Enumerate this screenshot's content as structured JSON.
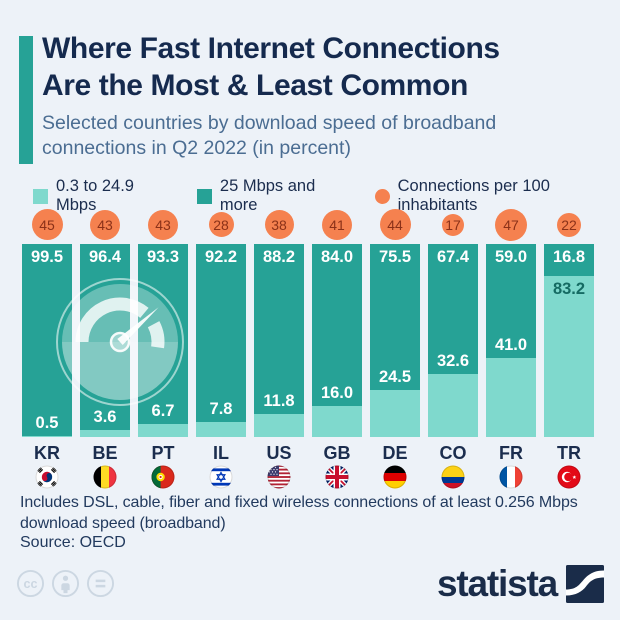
{
  "header": {
    "title": "Where Fast Internet Connections Are the Most & Least Common",
    "subtitle": "Selected countries by download speed of broadband connections in Q2 2022 (in percent)"
  },
  "legend": {
    "items": [
      {
        "label": "0.3 to 24.9 Mbps",
        "swatch": "light-teal-square",
        "color": "#7fd9cd"
      },
      {
        "label": "25 Mbps and more",
        "swatch": "dark-teal-square",
        "color": "#26a296"
      },
      {
        "label": "Connections per 100 inhabitants",
        "swatch": "orange-circle",
        "color": "#f5814f"
      }
    ]
  },
  "chart_data": {
    "type": "bar",
    "stacked": true,
    "orientation": "vertical",
    "unit": "percent",
    "ylim": [
      0,
      100
    ],
    "title": "Where Fast Internet Connections Are the Most & Least Common",
    "subtitle": "Selected countries by download speed of broadband connections in Q2 2022 (in percent)",
    "categories": [
      "KR",
      "BE",
      "PT",
      "IL",
      "US",
      "GB",
      "DE",
      "CO",
      "FR",
      "TR"
    ],
    "series": [
      {
        "name": "25 Mbps and more",
        "color": "#26a296",
        "values": [
          99.5,
          96.4,
          93.3,
          92.2,
          88.2,
          84.0,
          75.5,
          67.4,
          59.0,
          16.8
        ]
      },
      {
        "name": "0.3 to 24.9 Mbps",
        "color": "#7fd9cd",
        "values": [
          0.5,
          3.6,
          6.7,
          7.8,
          11.8,
          16.0,
          24.5,
          32.6,
          41.0,
          83.2
        ]
      },
      {
        "name": "Connections per 100 inhabitants",
        "color": "#f5814f",
        "values": [
          45,
          43,
          43,
          28,
          38,
          41,
          44,
          17,
          47,
          22
        ]
      }
    ],
    "legend_position": "top",
    "grid": false
  },
  "icons": {
    "watermark": "speedometer-icon",
    "flags": [
      "south-korea-flag",
      "belgium-flag",
      "portugal-flag",
      "israel-flag",
      "united-states-flag",
      "united-kingdom-flag",
      "germany-flag",
      "colombia-flag",
      "france-flag",
      "turkey-flag"
    ],
    "license": [
      "creative-commons-icon",
      "attribution-icon",
      "equals-icon"
    ],
    "brand": "statista-logo-icon"
  },
  "footer": {
    "note": "Includes DSL, cable, fiber and fixed wireless connections of at least 0.256 Mbps download speed (broadband)",
    "source": "Source: OECD"
  },
  "branding": {
    "logo_text": "statista"
  },
  "colors": {
    "background": "#edf2f8",
    "title": "#152a4e",
    "subtitle": "#4b6d92",
    "dark_teal": "#26a296",
    "light_teal": "#7fd9cd",
    "orange": "#f5814f",
    "bubble_text": "#8b3118",
    "light_segment_label": "#156b63",
    "footer_text": "#223a5e",
    "logo_navy": "#1a2c49"
  }
}
